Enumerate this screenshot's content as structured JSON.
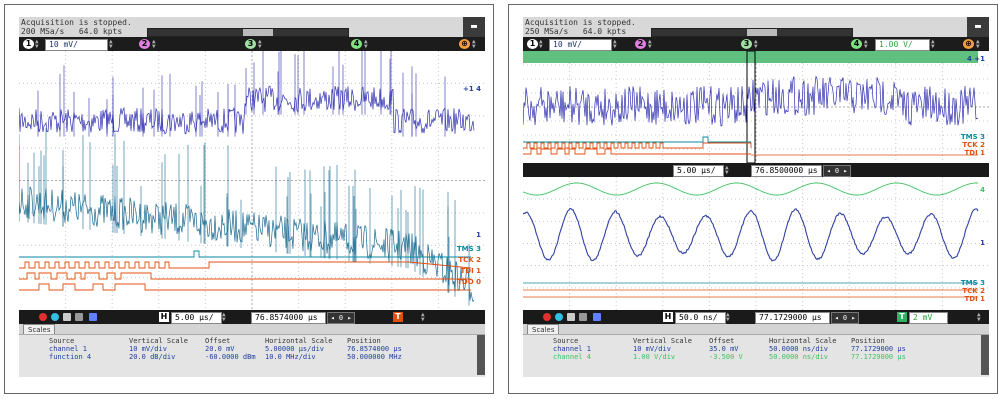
{
  "panels": [
    {
      "status": {
        "line1": "Acquisition is stopped.",
        "rate": "200 MSa/s",
        "points": "64.0 kpts"
      },
      "channels": [
        {
          "num": "1",
          "color": "#1e1ec8",
          "scale": "10 mV/"
        },
        {
          "num": "2",
          "color": "#c040c0",
          "scale": ""
        },
        {
          "num": "3",
          "color": "#80c080",
          "scale": ""
        },
        {
          "num": "4",
          "color": "#40c040",
          "scale": ""
        }
      ],
      "run_icon": "stop-icon",
      "time_bar": {
        "h_label": "H",
        "scale": "5.00 µs/",
        "position": "76.8574000 µs",
        "nav_value": "0",
        "t_label": "T"
      },
      "digital_labels": [
        {
          "text": "TMS",
          "num": "3",
          "color": "#0a8aa0"
        },
        {
          "text": "TCK",
          "num": "2",
          "color": "#e05010"
        },
        {
          "text": "TDI",
          "num": "1",
          "color": "#e05010"
        },
        {
          "text": "TDO",
          "num": "0",
          "color": "#e05010"
        }
      ],
      "markers": {
        "top": "+1 4",
        "bottom": "1"
      },
      "tab": "Scales",
      "scales": {
        "headers": [
          "Source",
          "Vertical Scale",
          "Offset",
          "Horizontal Scale",
          "Position"
        ],
        "rows": [
          {
            "color": "#2040a0",
            "cells": [
              "channel 1",
              "10 mV/div",
              "20.0 mV",
              "5.00000 µs/div",
              "76.8574000 µs"
            ]
          },
          {
            "color": "#2040a0",
            "cells": [
              "function 4",
              "20.0 dB/div",
              "-60.0000 dBm",
              "10.0 MHz/div",
              "50.000000 MHz"
            ]
          }
        ]
      }
    },
    {
      "status": {
        "line1": "Acquisition is stopped.",
        "rate": "250 MSa/s",
        "points": "64.0 kpts"
      },
      "channels": [
        {
          "num": "1",
          "color": "#1e1ec8",
          "scale": "10 mV/"
        },
        {
          "num": "2",
          "color": "#c040c0",
          "scale": ""
        },
        {
          "num": "3",
          "color": "#80c080",
          "scale": ""
        },
        {
          "num": "4",
          "color": "#40c040",
          "scale": "1.00 V/"
        }
      ],
      "zoom_bar": {
        "scale": "5.00 µs/",
        "position": "76.8500000 µs",
        "nav_value": "0"
      },
      "time_bar": {
        "h_label": "H",
        "scale": "50.0 ns/",
        "position": "77.1729000 µs",
        "nav_value": "0",
        "t_label": "T",
        "trigger": "2 mV"
      },
      "digital_labels_top": [
        {
          "text": "TMS",
          "num": "3",
          "color": "#0a8aa0"
        },
        {
          "text": "TCK",
          "num": "2",
          "color": "#e05010"
        },
        {
          "text": "TDI",
          "num": "1",
          "color": "#e05010"
        }
      ],
      "digital_labels_bottom": [
        {
          "text": "TMS",
          "num": "3",
          "color": "#0a8aa0"
        },
        {
          "text": "TCK",
          "num": "2",
          "color": "#e05010"
        },
        {
          "text": "TDI",
          "num": "1",
          "color": "#e05010"
        }
      ],
      "markers": {
        "top": "4 +1",
        "mid": "4",
        "mid2": "1"
      },
      "tab": "Scales",
      "scales": {
        "headers": [
          "Source",
          "Vertical Scale",
          "Offset",
          "Horizontal Scale",
          "Position"
        ],
        "rows": [
          {
            "color": "#2040a0",
            "cells": [
              "channel 1",
              "10 mV/div",
              "35.0 mV",
              "50.0000 ns/div",
              "77.1729000 µs"
            ]
          },
          {
            "color": "#40c060",
            "cells": [
              "channel 4",
              "1.00 V/div",
              "-3.500 V",
              "50.0000 ns/div",
              "77.1729000 µs"
            ]
          }
        ]
      }
    }
  ]
}
